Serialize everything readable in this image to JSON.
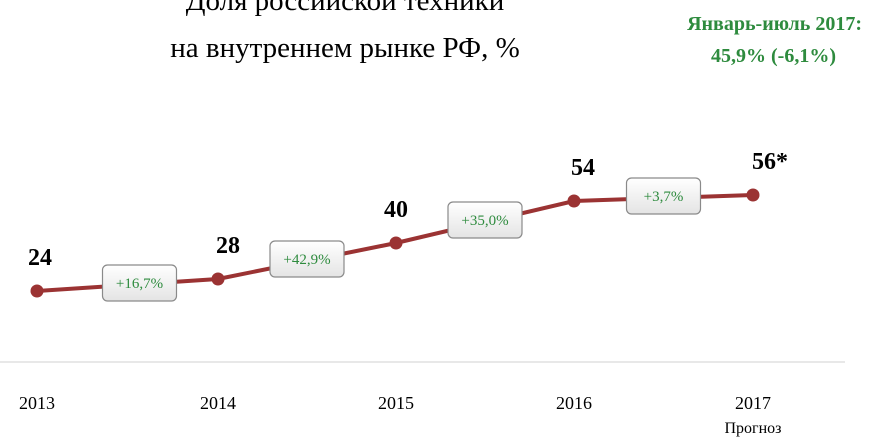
{
  "chart_data": {
    "type": "line",
    "title": [
      "Доля российской техники",
      "на внутреннем рынке РФ, %"
    ],
    "annotation": [
      "Январь-июль 2017:",
      "45,9% (-6,1%)"
    ],
    "categories": [
      "2013",
      "2014",
      "2015",
      "2016",
      "2017"
    ],
    "category_notes": [
      null,
      null,
      null,
      null,
      "Прогноз"
    ],
    "values": [
      24,
      28,
      40,
      54,
      56
    ],
    "value_labels": [
      "24",
      "28",
      "40",
      "54",
      "56*"
    ],
    "changes": [
      "+16,7%",
      "+42,9%",
      "+35,0%",
      "+3,7%"
    ],
    "color": "#9b3333",
    "annotation_color": "#2e8b3e"
  }
}
